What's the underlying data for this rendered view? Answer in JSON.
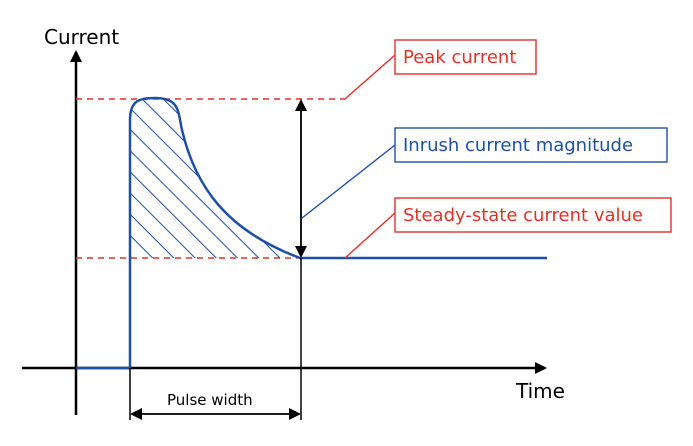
{
  "axes": {
    "y_label": "Current",
    "x_label": "Time"
  },
  "labels": {
    "peak_current": "Peak current",
    "inrush_magnitude": "Inrush current magnitude",
    "steady_state": "Steady-state current value",
    "pulse_width": "Pulse width"
  },
  "colors": {
    "red": "#e0322a",
    "blue": "#1f4fa8",
    "axis": "#000000"
  }
}
